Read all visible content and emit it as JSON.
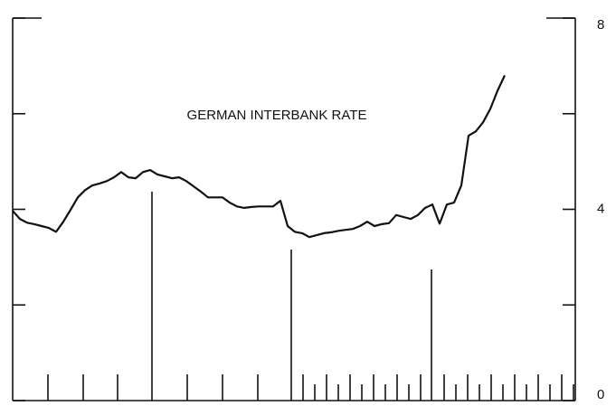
{
  "chart_data": {
    "type": "line",
    "title": "GERMAN INTERBANK RATE",
    "categories": [
      null,
      null,
      null,
      null,
      null,
      null,
      null,
      null,
      null,
      null,
      null,
      null,
      null,
      null,
      null,
      null,
      null,
      null,
      null,
      null,
      null,
      null,
      null,
      null,
      null,
      null,
      null,
      null,
      null,
      null,
      null,
      null,
      null,
      null,
      null,
      null,
      null,
      null,
      null,
      null,
      null,
      null,
      null,
      null,
      null,
      null,
      null,
      null,
      null,
      null,
      null,
      null,
      null,
      null,
      null,
      null,
      null,
      null,
      null,
      null,
      null,
      null,
      null,
      null,
      null,
      null,
      null,
      null,
      null,
      null,
      null,
      null,
      null,
      null,
      null,
      null,
      null,
      null
    ],
    "series": [
      {
        "color": "#111111",
        "values": [
          3.97,
          3.8,
          3.72,
          3.69,
          3.65,
          3.61,
          3.53,
          3.74,
          3.99,
          4.25,
          4.4,
          4.5,
          4.54,
          4.59,
          4.67,
          4.78,
          4.67,
          4.65,
          4.78,
          4.82,
          4.73,
          4.69,
          4.65,
          4.67,
          4.59,
          4.48,
          4.37,
          4.25,
          4.25,
          4.25,
          4.14,
          4.06,
          4.03,
          4.05,
          4.06,
          4.06,
          4.06,
          4.18,
          3.65,
          3.53,
          3.5,
          3.42,
          3.46,
          3.5,
          3.52,
          3.55,
          3.57,
          3.59,
          3.65,
          3.74,
          3.65,
          3.69,
          3.71,
          3.88,
          3.84,
          3.8,
          3.88,
          4.03,
          4.1,
          3.7,
          4.1,
          4.14,
          4.5,
          5.54,
          5.63,
          5.82,
          6.1,
          6.48,
          6.8,
          null,
          null,
          null,
          null,
          null,
          null,
          null,
          null,
          null
        ]
      }
    ],
    "ylim": [
      0,
      8
    ],
    "yticks": [
      0,
      4,
      8
    ],
    "minor_yticks": [
      2,
      6
    ]
  }
}
